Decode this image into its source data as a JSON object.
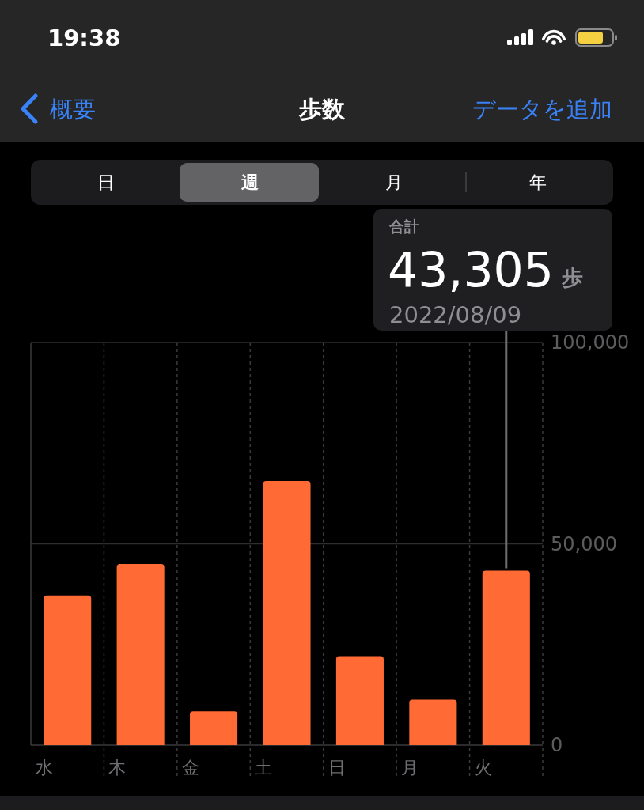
{
  "chart_data": {
    "type": "bar",
    "title": "歩数",
    "categories": [
      "水",
      "木",
      "金",
      "土",
      "日",
      "月",
      "火"
    ],
    "values": [
      37200,
      45000,
      8400,
      65600,
      22100,
      11300,
      43305
    ],
    "color": "#ff6a35",
    "ylim": [
      0,
      100000
    ],
    "yticks": [
      0,
      {
        "value": 50000,
        "label": "50,000"
      },
      {
        "value": 100000,
        "label": "100,000"
      }
    ],
    "grid": true,
    "annotations": [
      "19:38",
      "概要",
      "データを追加",
      "日",
      "週",
      "月",
      "年",
      "合計",
      "43,305",
      "歩",
      "2022/08/09"
    ]
  }
}
